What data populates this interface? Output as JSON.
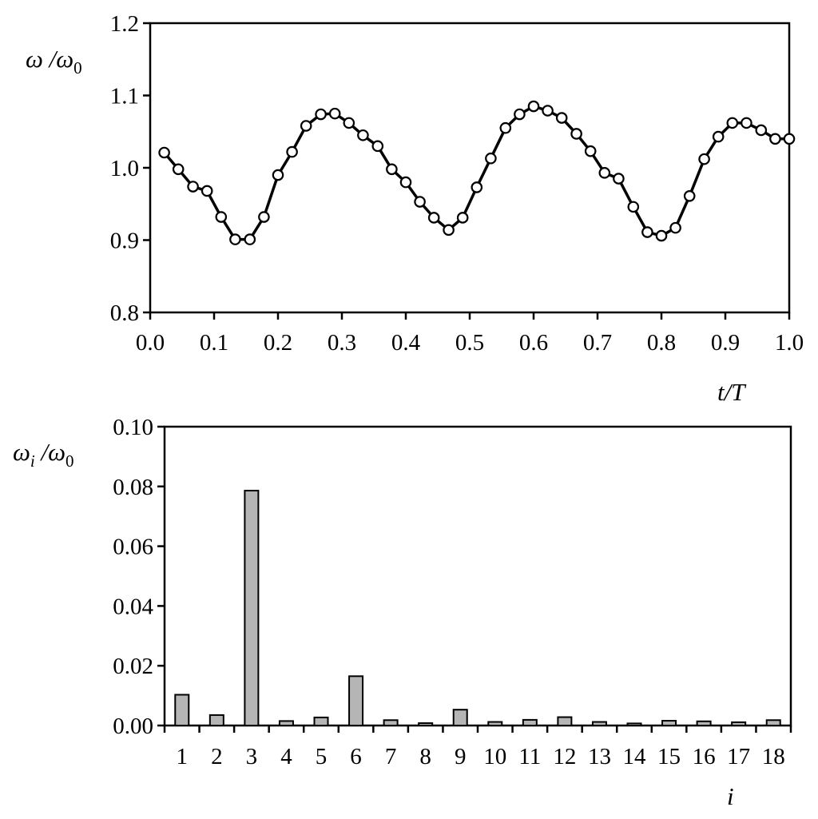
{
  "chart_data": [
    {
      "type": "line",
      "ylabel": {
        "main": "ω /ω",
        "sub": "0"
      },
      "xlabel": "t/T",
      "xlim": [
        0.0,
        1.0
      ],
      "ylim": [
        0.8,
        1.2
      ],
      "xticks": [
        "0.0",
        "0.1",
        "0.2",
        "0.3",
        "0.4",
        "0.5",
        "0.6",
        "0.7",
        "0.8",
        "0.9",
        "1.0"
      ],
      "yticks": [
        "0.8",
        "0.9",
        "1.0",
        "1.1",
        "1.2"
      ],
      "marker": "open-circle",
      "grid": false,
      "x": [
        0.022,
        0.044,
        0.067,
        0.089,
        0.111,
        0.133,
        0.156,
        0.178,
        0.2,
        0.222,
        0.244,
        0.267,
        0.289,
        0.311,
        0.333,
        0.356,
        0.378,
        0.4,
        0.422,
        0.444,
        0.467,
        0.489,
        0.511,
        0.533,
        0.556,
        0.578,
        0.6,
        0.622,
        0.644,
        0.667,
        0.689,
        0.711,
        0.733,
        0.756,
        0.778,
        0.8,
        0.822,
        0.844,
        0.867,
        0.889,
        0.911,
        0.933,
        0.956,
        0.978,
        1.0
      ],
      "y": [
        1.021,
        0.998,
        0.974,
        0.968,
        0.932,
        0.901,
        0.901,
        0.932,
        0.99,
        1.022,
        1.058,
        1.074,
        1.075,
        1.062,
        1.045,
        1.03,
        0.998,
        0.98,
        0.953,
        0.931,
        0.914,
        0.931,
        0.973,
        1.013,
        1.055,
        1.074,
        1.085,
        1.079,
        1.069,
        1.047,
        1.023,
        0.993,
        0.985,
        0.946,
        0.911,
        0.906,
        0.917,
        0.961,
        1.012,
        1.043,
        1.062,
        1.062,
        1.052,
        1.04,
        1.04
      ]
    },
    {
      "type": "bar",
      "ylabel": {
        "main": "ω",
        "subi": "i",
        "mid": " /ω",
        "sub": "0"
      },
      "xlabel": "i",
      "ylim": [
        0.0,
        0.1
      ],
      "yticks": [
        "0.00",
        "0.02",
        "0.04",
        "0.06",
        "0.08",
        "0.10"
      ],
      "grid": false,
      "categories": [
        "1",
        "2",
        "3",
        "4",
        "5",
        "6",
        "7",
        "8",
        "9",
        "10",
        "11",
        "12",
        "13",
        "14",
        "15",
        "16",
        "17",
        "18"
      ],
      "values": [
        0.0103,
        0.0035,
        0.0786,
        0.0015,
        0.0027,
        0.0165,
        0.0018,
        0.0008,
        0.0053,
        0.0012,
        0.0019,
        0.0028,
        0.0012,
        0.0007,
        0.0016,
        0.0014,
        0.0011,
        0.0018
      ],
      "bar_color": "#b5b5b5"
    }
  ]
}
